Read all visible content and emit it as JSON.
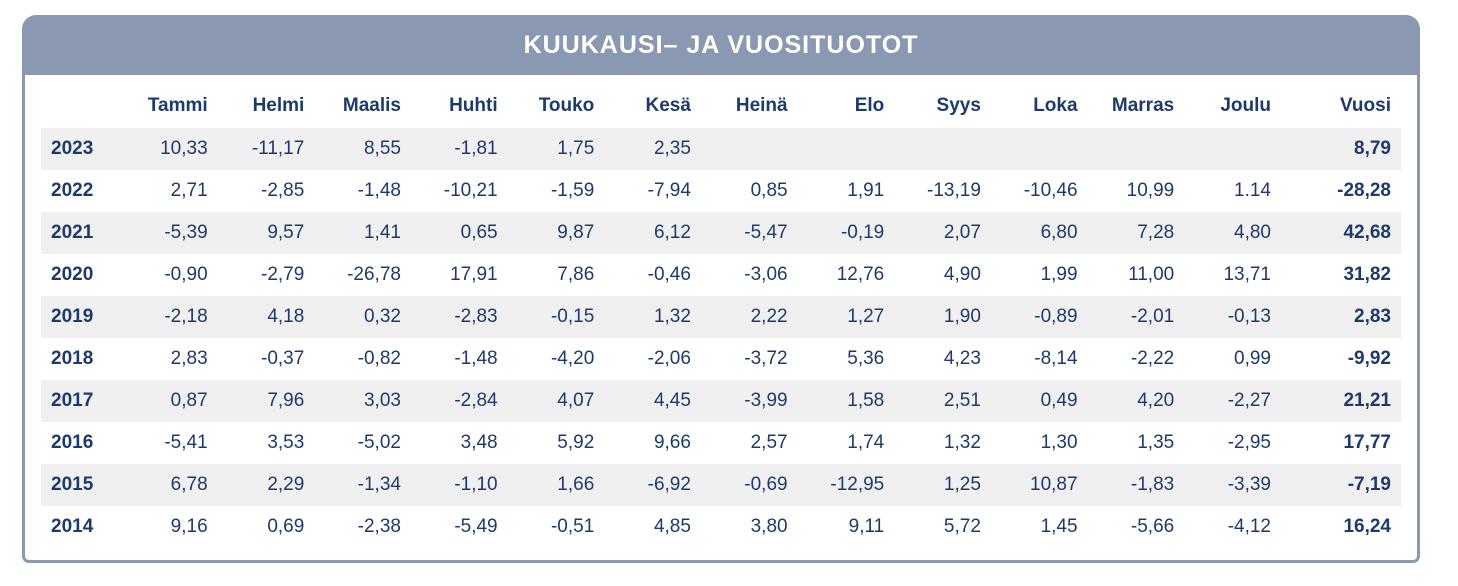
{
  "title": "KUUKAUSI– JA VUOSITUOTOT",
  "colors": {
    "header_bg": "#8a99b1",
    "border": "#8a99b1",
    "text_navy": "#1c3a6e",
    "row_stripe": "#f0f0f1",
    "title_text": "#ffffff"
  },
  "chart_data": {
    "type": "table",
    "title": "KUUKAUSI– JA VUOSITUOTOT",
    "columns": [
      "",
      "Tammi",
      "Helmi",
      "Maalis",
      "Huhti",
      "Touko",
      "Kesä",
      "Heinä",
      "Elo",
      "Syys",
      "Loka",
      "Marras",
      "Joulu",
      "Vuosi"
    ],
    "layout_hints": {
      "value_alignment": "right",
      "striped_rows": "odd rows shaded",
      "total_column_bold": true,
      "decimal_separator": "comma (one anomalous period value: 2022 Joulu)"
    },
    "rows": [
      {
        "year": "2023",
        "values": [
          "10,33",
          "-11,17",
          "8,55",
          "-1,81",
          "1,75",
          "2,35",
          "",
          "",
          "",
          "",
          "",
          "",
          "8,79"
        ]
      },
      {
        "year": "2022",
        "values": [
          "2,71",
          "-2,85",
          "-1,48",
          "-10,21",
          "-1,59",
          "-7,94",
          "0,85",
          "1,91",
          "-13,19",
          "-10,46",
          "10,99",
          "1.14",
          "-28,28"
        ]
      },
      {
        "year": "2021",
        "values": [
          "-5,39",
          "9,57",
          "1,41",
          "0,65",
          "9,87",
          "6,12",
          "-5,47",
          "-0,19",
          "2,07",
          "6,80",
          "7,28",
          "4,80",
          "42,68"
        ]
      },
      {
        "year": "2020",
        "values": [
          "-0,90",
          "-2,79",
          "-26,78",
          "17,91",
          "7,86",
          "-0,46",
          "-3,06",
          "12,76",
          "4,90",
          "1,99",
          "11,00",
          "13,71",
          "31,82"
        ]
      },
      {
        "year": "2019",
        "values": [
          "-2,18",
          "4,18",
          "0,32",
          "-2,83",
          "-0,15",
          "1,32",
          "2,22",
          "1,27",
          "1,90",
          "-0,89",
          "-2,01",
          "-0,13",
          "2,83"
        ]
      },
      {
        "year": "2018",
        "values": [
          "2,83",
          "-0,37",
          "-0,82",
          "-1,48",
          "-4,20",
          "-2,06",
          "-3,72",
          "5,36",
          "4,23",
          "-8,14",
          "-2,22",
          "0,99",
          "-9,92"
        ]
      },
      {
        "year": "2017",
        "values": [
          "0,87",
          "7,96",
          "3,03",
          "-2,84",
          "4,07",
          "4,45",
          "-3,99",
          "1,58",
          "2,51",
          "0,49",
          "4,20",
          "-2,27",
          "21,21"
        ]
      },
      {
        "year": "2016",
        "values": [
          "-5,41",
          "3,53",
          "-5,02",
          "3,48",
          "5,92",
          "9,66",
          "2,57",
          "1,74",
          "1,32",
          "1,30",
          "1,35",
          "-2,95",
          "17,77"
        ]
      },
      {
        "year": "2015",
        "values": [
          "6,78",
          "2,29",
          "-1,34",
          "-1,10",
          "1,66",
          "-6,92",
          "-0,69",
          "-12,95",
          "1,25",
          "10,87",
          "-1,83",
          "-3,39",
          "-7,19"
        ]
      },
      {
        "year": "2014",
        "values": [
          "9,16",
          "0,69",
          "-2,38",
          "-5,49",
          "-0,51",
          "4,85",
          "3,80",
          "9,11",
          "5,72",
          "1,45",
          "-5,66",
          "-4,12",
          "16,24"
        ]
      }
    ]
  }
}
